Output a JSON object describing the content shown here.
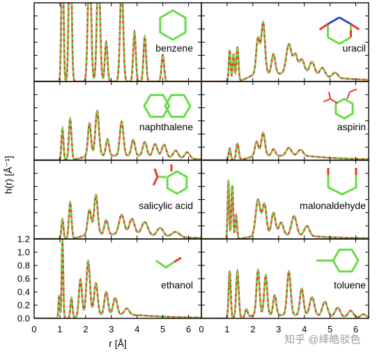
{
  "axes": {
    "xlabel": "r [Å]",
    "ylabel": "h(r) [Å⁻¹]",
    "xlim": [
      0,
      6.5
    ],
    "ylim": [
      0,
      1.2
    ],
    "x_ticks": [
      0,
      1,
      2,
      3,
      4,
      5,
      6
    ],
    "y_ticks": [
      0.0,
      0.2,
      0.4,
      0.6,
      0.8,
      1.0,
      1.2
    ],
    "y_tick_labels": [
      "0.0",
      "0.2",
      "0.4",
      "0.6",
      "0.8",
      "1.0",
      "1.2"
    ]
  },
  "colors": {
    "reference_line": "#ee3333",
    "model_line": "#66dd44",
    "frame": "#000000",
    "molecule_bond": "#66dd44",
    "molecule_oxygen": "#ee3333",
    "molecule_nitrogen": "#3344cc"
  },
  "watermark": "知乎 @绛皓驳色",
  "chart_data": [
    {
      "type": "line",
      "panel": "benzene",
      "label": "benzene",
      "row": 0,
      "col": 0,
      "peaks": [
        [
          1.1,
          2.2,
          0.04
        ],
        [
          1.4,
          2.6,
          0.05
        ],
        [
          2.15,
          2.0,
          0.06
        ],
        [
          2.5,
          1.8,
          0.06
        ],
        [
          2.8,
          0.6,
          0.05
        ],
        [
          3.4,
          1.5,
          0.06
        ],
        [
          3.9,
          0.75,
          0.05
        ],
        [
          4.3,
          0.68,
          0.05
        ],
        [
          5.0,
          0.4,
          0.05
        ]
      ],
      "background": 0.0
    },
    {
      "type": "line",
      "panel": "uracil",
      "label": "uracil",
      "row": 0,
      "col": 1,
      "peaks": [
        [
          1.1,
          0.48,
          0.035
        ],
        [
          1.25,
          0.42,
          0.035
        ],
        [
          1.4,
          0.52,
          0.04
        ],
        [
          2.2,
          0.55,
          0.07
        ],
        [
          2.4,
          0.78,
          0.07
        ],
        [
          2.8,
          0.3,
          0.07
        ],
        [
          3.4,
          0.45,
          0.1
        ],
        [
          3.65,
          0.28,
          0.08
        ],
        [
          3.9,
          0.22,
          0.1
        ],
        [
          4.3,
          0.2,
          0.1
        ],
        [
          4.7,
          0.13,
          0.1
        ],
        [
          5.2,
          0.08,
          0.1
        ]
      ],
      "background": 0.12
    },
    {
      "type": "line",
      "panel": "naphthalene",
      "label": "naphthalene",
      "row": 1,
      "col": 0,
      "peaks": [
        [
          1.1,
          0.48,
          0.04
        ],
        [
          1.4,
          0.62,
          0.05
        ],
        [
          2.15,
          0.5,
          0.06
        ],
        [
          2.45,
          0.68,
          0.07
        ],
        [
          2.85,
          0.25,
          0.06
        ],
        [
          3.4,
          0.52,
          0.07
        ],
        [
          3.85,
          0.24,
          0.07
        ],
        [
          4.3,
          0.22,
          0.08
        ],
        [
          4.7,
          0.2,
          0.09
        ],
        [
          5.05,
          0.2,
          0.09
        ],
        [
          5.5,
          0.12,
          0.1
        ],
        [
          5.95,
          0.1,
          0.1
        ]
      ],
      "background": 0.07
    },
    {
      "type": "line",
      "panel": "aspirin",
      "label": "aspirin",
      "row": 1,
      "col": 1,
      "peaks": [
        [
          1.1,
          0.18,
          0.04
        ],
        [
          1.4,
          0.25,
          0.05
        ],
        [
          2.15,
          0.22,
          0.07
        ],
        [
          2.4,
          0.35,
          0.07
        ],
        [
          2.8,
          0.1,
          0.07
        ],
        [
          3.4,
          0.12,
          0.1
        ],
        [
          3.85,
          0.09,
          0.1
        ]
      ],
      "background": 0.07
    },
    {
      "type": "line",
      "panel": "salicylic-acid",
      "label": "salicylic acid",
      "row": 2,
      "col": 0,
      "peaks": [
        [
          1.1,
          0.3,
          0.04
        ],
        [
          1.4,
          0.55,
          0.05
        ],
        [
          2.15,
          0.38,
          0.07
        ],
        [
          2.4,
          0.6,
          0.07
        ],
        [
          2.8,
          0.22,
          0.07
        ],
        [
          3.4,
          0.3,
          0.1
        ],
        [
          3.8,
          0.24,
          0.1
        ],
        [
          4.3,
          0.2,
          0.12
        ],
        [
          4.9,
          0.13,
          0.12
        ],
        [
          5.5,
          0.08,
          0.15
        ]
      ],
      "background": 0.07
    },
    {
      "type": "line",
      "panel": "malonaldehyde",
      "label": "malonaldehyde",
      "row": 2,
      "col": 1,
      "peaks": [
        [
          1.05,
          0.9,
          0.03
        ],
        [
          1.2,
          0.82,
          0.035
        ],
        [
          1.35,
          0.35,
          0.035
        ],
        [
          2.2,
          0.55,
          0.09
        ],
        [
          2.45,
          0.48,
          0.08
        ],
        [
          2.8,
          0.35,
          0.08
        ],
        [
          3.1,
          0.2,
          0.09
        ],
        [
          3.6,
          0.3,
          0.1
        ],
        [
          4.1,
          0.15,
          0.1
        ]
      ],
      "background": 0.05
    },
    {
      "type": "line",
      "panel": "ethanol",
      "label": "ethanol",
      "row": 3,
      "col": 0,
      "peaks": [
        [
          0.97,
          0.35,
          0.025
        ],
        [
          1.1,
          1.2,
          0.03
        ],
        [
          1.45,
          0.3,
          0.04
        ],
        [
          1.8,
          0.56,
          0.06
        ],
        [
          2.1,
          0.82,
          0.07
        ],
        [
          2.4,
          0.48,
          0.07
        ],
        [
          2.8,
          0.35,
          0.07
        ],
        [
          3.15,
          0.26,
          0.08
        ],
        [
          3.6,
          0.1,
          0.1
        ]
      ],
      "background": 0.05
    },
    {
      "type": "line",
      "panel": "toluene",
      "label": "toluene",
      "row": 3,
      "col": 1,
      "peaks": [
        [
          1.1,
          0.72,
          0.04
        ],
        [
          1.4,
          0.7,
          0.05
        ],
        [
          1.75,
          0.12,
          0.05
        ],
        [
          2.2,
          0.68,
          0.06
        ],
        [
          2.5,
          0.6,
          0.06
        ],
        [
          2.85,
          0.3,
          0.06
        ],
        [
          3.4,
          0.66,
          0.07
        ],
        [
          3.9,
          0.4,
          0.07
        ],
        [
          4.3,
          0.28,
          0.09
        ],
        [
          4.8,
          0.22,
          0.1
        ],
        [
          5.3,
          0.14,
          0.1
        ],
        [
          5.8,
          0.1,
          0.1
        ],
        [
          6.3,
          0.05,
          0.1
        ]
      ],
      "background": 0.05
    }
  ]
}
